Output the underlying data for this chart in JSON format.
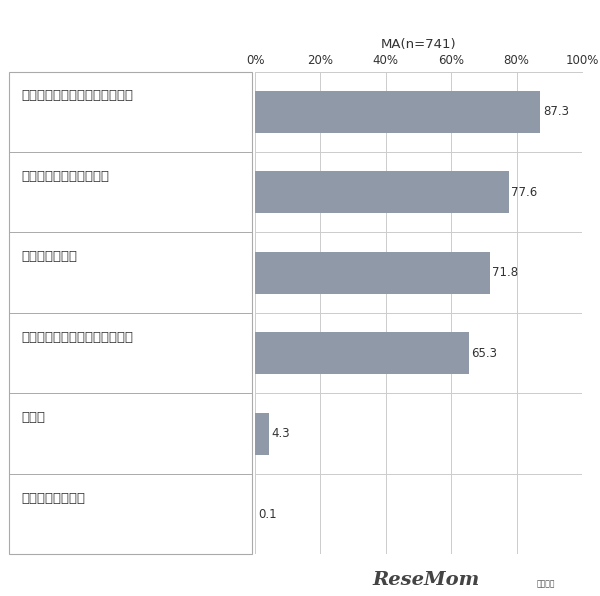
{
  "title": "MA(n=741)",
  "categories": [
    "人の命を救うことができる仕事",
    "人や社会の役に立つ仕事",
    "危険のある仕事",
    "人並み以上に体力が必要な仕事",
    "その他",
    "イメージできない"
  ],
  "values": [
    87.3,
    77.6,
    71.8,
    65.3,
    4.3,
    0.1
  ],
  "bar_color": "#9099a8",
  "background_color": "#ffffff",
  "xlim": [
    0,
    100
  ],
  "xticks": [
    0,
    20,
    40,
    60,
    80,
    100
  ],
  "xtick_labels": [
    "0%",
    "20%",
    "40%",
    "60%",
    "80%",
    "100%"
  ],
  "bar_height": 0.52,
  "value_fontsize": 8.5,
  "category_fontsize": 9.5,
  "title_fontsize": 9.5,
  "grid_color": "#cccccc",
  "border_color": "#aaaaaa",
  "text_color": "#333333",
  "resemom_text": "ReseMom",
  "resemom_sub": "リザマム"
}
